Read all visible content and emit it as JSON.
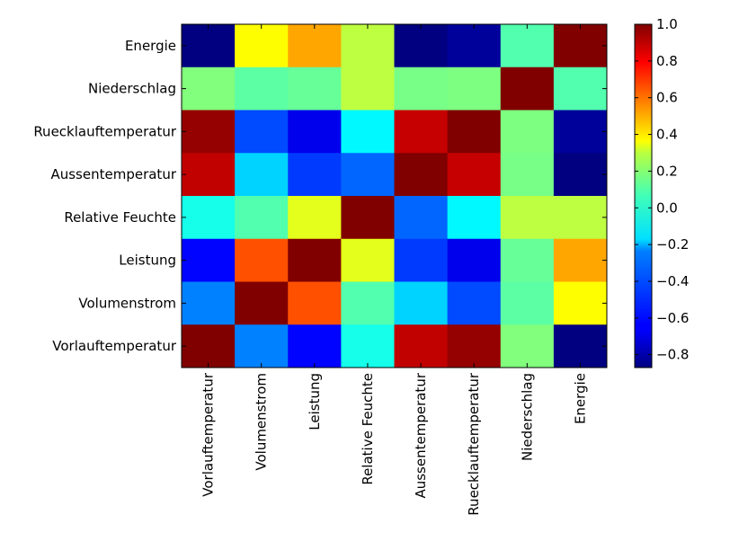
{
  "chart_data": {
    "type": "heatmap",
    "title": "",
    "xlabel": "",
    "ylabel": "",
    "x_categories": [
      "Vorlauftemperatur",
      "Volumenstrom",
      "Leistung",
      "Relative Feuchte",
      "Aussentemperatur",
      "Ruecklauftemperatur",
      "Niederschlag",
      "Energie"
    ],
    "y_categories": [
      "Energie",
      "Niederschlag",
      "Ruecklauftemperatur",
      "Aussentemperatur",
      "Relative Feuchte",
      "Leistung",
      "Volumenstrom",
      "Vorlauftemperatur"
    ],
    "values": [
      [
        -0.87,
        0.3,
        0.46,
        0.18,
        -0.87,
        -0.82,
        -0.02,
        1.0
      ],
      [
        0.07,
        0.0,
        0.02,
        0.18,
        0.05,
        0.06,
        1.0,
        -0.02
      ],
      [
        0.96,
        -0.5,
        -0.67,
        -0.18,
        0.87,
        1.0,
        0.06,
        -0.82
      ],
      [
        0.88,
        -0.25,
        -0.53,
        -0.45,
        1.0,
        0.87,
        0.05,
        -0.87
      ],
      [
        -0.13,
        -0.02,
        0.25,
        1.0,
        -0.45,
        -0.18,
        0.18,
        0.18
      ],
      [
        -0.63,
        0.62,
        1.0,
        0.25,
        -0.53,
        -0.67,
        0.02,
        0.46
      ],
      [
        -0.4,
        1.0,
        0.62,
        -0.02,
        -0.25,
        -0.5,
        0.0,
        0.3
      ],
      [
        1.0,
        -0.4,
        -0.63,
        -0.13,
        0.88,
        0.96,
        0.07,
        -0.87
      ]
    ],
    "colorbar": {
      "colormap": "jet",
      "range": [
        -0.87,
        1.0
      ],
      "ticks": [
        "−0.8",
        "−0.6",
        "−0.4",
        "−0.2",
        "0.0",
        "0.2",
        "0.4",
        "0.6",
        "0.8",
        "1.0"
      ],
      "tick_values": [
        -0.8,
        -0.6,
        -0.4,
        -0.2,
        0.0,
        0.2,
        0.4,
        0.6,
        0.8,
        1.0
      ]
    },
    "grid": false
  }
}
